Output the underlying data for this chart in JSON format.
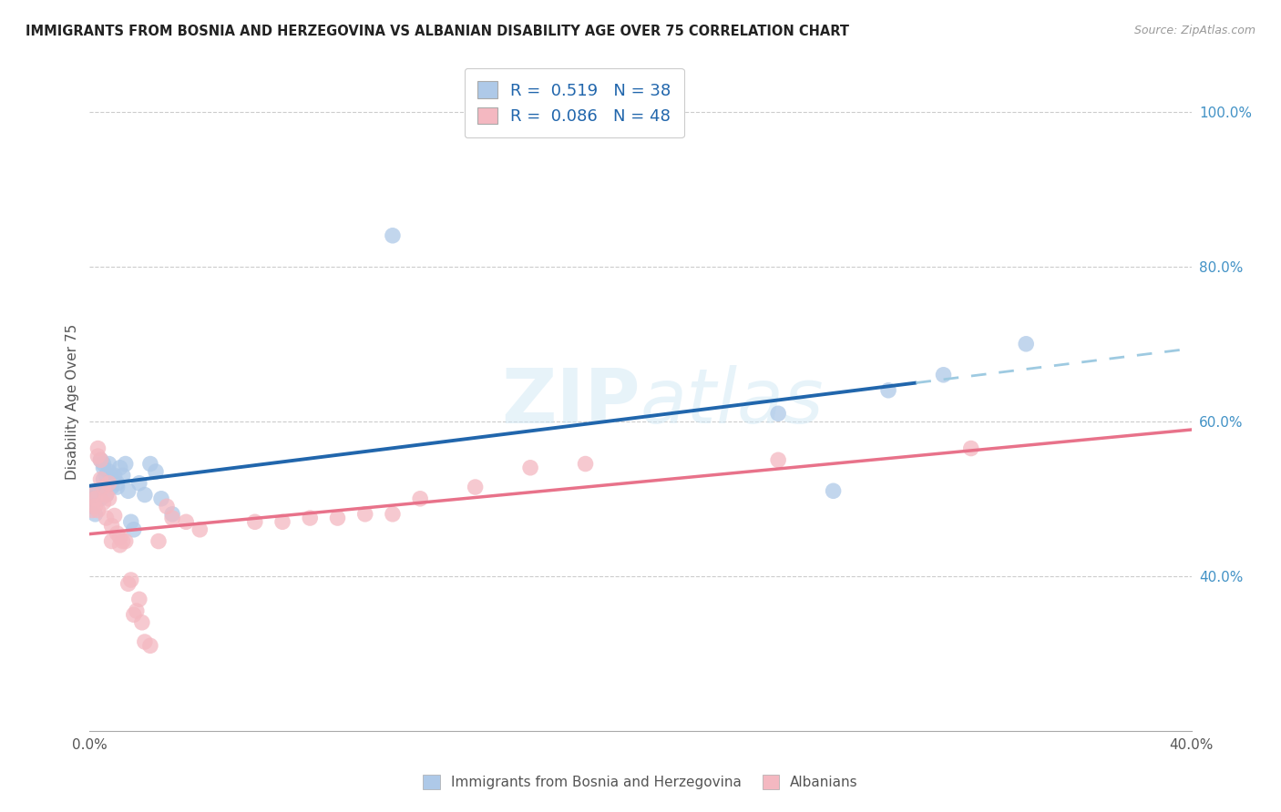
{
  "title": "IMMIGRANTS FROM BOSNIA AND HERZEGOVINA VS ALBANIAN DISABILITY AGE OVER 75 CORRELATION CHART",
  "source": "Source: ZipAtlas.com",
  "ylabel": "Disability Age Over 75",
  "xlim": [
    0.0,
    0.4
  ],
  "ylim": [
    0.2,
    1.05
  ],
  "xticks": [
    0.0,
    0.05,
    0.1,
    0.15,
    0.2,
    0.25,
    0.3,
    0.35,
    0.4
  ],
  "ytick_labels_right": [
    "100.0%",
    "80.0%",
    "60.0%",
    "40.0%"
  ],
  "ytick_positions_right": [
    1.0,
    0.8,
    0.6,
    0.4
  ],
  "legend1_label": "R =  0.519   N = 38",
  "legend2_label": "R =  0.086   N = 48",
  "blue_color": "#aec9e8",
  "pink_color": "#f4b8c1",
  "trend_blue_solid": "#2166ac",
  "trend_blue_dash": "#9ecae1",
  "trend_pink": "#e8728a",
  "watermark": "ZIPatlas",
  "blue_scatter_x": [
    0.001,
    0.001,
    0.002,
    0.002,
    0.003,
    0.003,
    0.004,
    0.004,
    0.005,
    0.005,
    0.005,
    0.006,
    0.006,
    0.007,
    0.007,
    0.008,
    0.008,
    0.009,
    0.01,
    0.01,
    0.011,
    0.012,
    0.013,
    0.014,
    0.015,
    0.016,
    0.018,
    0.02,
    0.022,
    0.024,
    0.026,
    0.03,
    0.11,
    0.25,
    0.27,
    0.29,
    0.31,
    0.34
  ],
  "blue_scatter_y": [
    0.49,
    0.5,
    0.51,
    0.48,
    0.5,
    0.51,
    0.5,
    0.55,
    0.54,
    0.525,
    0.545,
    0.505,
    0.53,
    0.545,
    0.535,
    0.515,
    0.525,
    0.53,
    0.515,
    0.52,
    0.54,
    0.53,
    0.545,
    0.51,
    0.47,
    0.46,
    0.52,
    0.505,
    0.545,
    0.535,
    0.5,
    0.48,
    0.84,
    0.61,
    0.51,
    0.64,
    0.66,
    0.7
  ],
  "pink_scatter_x": [
    0.001,
    0.001,
    0.002,
    0.002,
    0.003,
    0.003,
    0.003,
    0.004,
    0.004,
    0.005,
    0.005,
    0.006,
    0.006,
    0.007,
    0.007,
    0.008,
    0.008,
    0.009,
    0.01,
    0.011,
    0.011,
    0.012,
    0.013,
    0.014,
    0.015,
    0.016,
    0.017,
    0.018,
    0.019,
    0.02,
    0.022,
    0.025,
    0.028,
    0.03,
    0.035,
    0.04,
    0.06,
    0.07,
    0.08,
    0.09,
    0.1,
    0.11,
    0.12,
    0.14,
    0.16,
    0.18,
    0.25,
    0.32
  ],
  "pink_scatter_y": [
    0.485,
    0.505,
    0.49,
    0.5,
    0.485,
    0.555,
    0.565,
    0.525,
    0.55,
    0.515,
    0.495,
    0.505,
    0.475,
    0.5,
    0.52,
    0.445,
    0.465,
    0.478,
    0.455,
    0.44,
    0.45,
    0.445,
    0.445,
    0.39,
    0.395,
    0.35,
    0.355,
    0.37,
    0.34,
    0.315,
    0.31,
    0.445,
    0.49,
    0.475,
    0.47,
    0.46,
    0.47,
    0.47,
    0.475,
    0.475,
    0.48,
    0.48,
    0.5,
    0.515,
    0.54,
    0.545,
    0.55,
    0.565
  ]
}
